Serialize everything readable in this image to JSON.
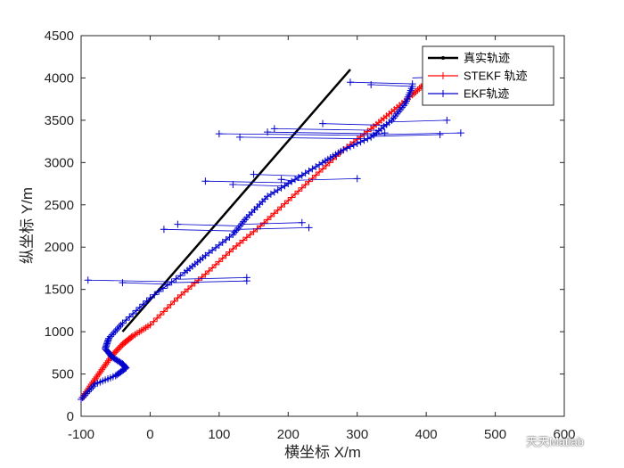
{
  "chart_data": {
    "type": "line",
    "title": "",
    "xlabel": "横坐标 X/m",
    "ylabel": "纵坐标 Y/m",
    "xlim": [
      -100,
      600
    ],
    "ylim": [
      0,
      4500
    ],
    "xticks": [
      -100,
      0,
      100,
      200,
      300,
      400,
      500,
      600
    ],
    "yticks": [
      0,
      500,
      1000,
      1500,
      2000,
      2500,
      3000,
      3500,
      4000,
      4500
    ],
    "legend_position": "top-right",
    "grid": false,
    "series": [
      {
        "name": "真实轨迹",
        "color": "#000000",
        "marker": "point",
        "x": [
          -40,
          290
        ],
        "y": [
          1000,
          4100
        ]
      },
      {
        "name": "STEKF 轨迹",
        "color": "#ff0000",
        "marker": "plus",
        "x": [
          -100,
          -85,
          -70,
          -55,
          -40,
          -25,
          0,
          40,
          80,
          120,
          160,
          200,
          240,
          280,
          320,
          350,
          380,
          400
        ],
        "y": [
          200,
          380,
          550,
          720,
          850,
          950,
          1080,
          1400,
          1680,
          1980,
          2250,
          2550,
          2850,
          3150,
          3400,
          3600,
          3800,
          3950
        ]
      },
      {
        "name": "EKF轨迹",
        "color": "#0000cc",
        "marker": "plus",
        "x": [
          -100,
          -80,
          -50,
          -35,
          -40,
          -55,
          -65,
          -60,
          -40,
          0,
          50,
          80,
          120,
          140,
          170,
          210,
          250,
          280,
          320,
          350,
          370,
          380
        ],
        "y": [
          200,
          380,
          480,
          570,
          620,
          700,
          800,
          920,
          1100,
          1400,
          1700,
          1900,
          2150,
          2350,
          2600,
          2800,
          3000,
          3150,
          3300,
          3500,
          3700,
          3900
        ]
      }
    ],
    "outliers": {
      "name": "EKF轨迹",
      "x": [
        -90,
        140,
        -40,
        140,
        20,
        230,
        40,
        220,
        80,
        190,
        150,
        120,
        300,
        130,
        170,
        420,
        100,
        340,
        180,
        450,
        250,
        430,
        320,
        380,
        290,
        450
      ],
      "y": [
        1610,
        1640,
        1580,
        1600,
        2210,
        2230,
        2270,
        2290,
        2780,
        2800,
        2860,
        2740,
        2810,
        3300,
        3360,
        3330,
        3340,
        3350,
        3400,
        3350,
        3460,
        3500,
        3920,
        3930,
        3950,
        4020
      ]
    }
  },
  "watermark": "天天Matlab"
}
